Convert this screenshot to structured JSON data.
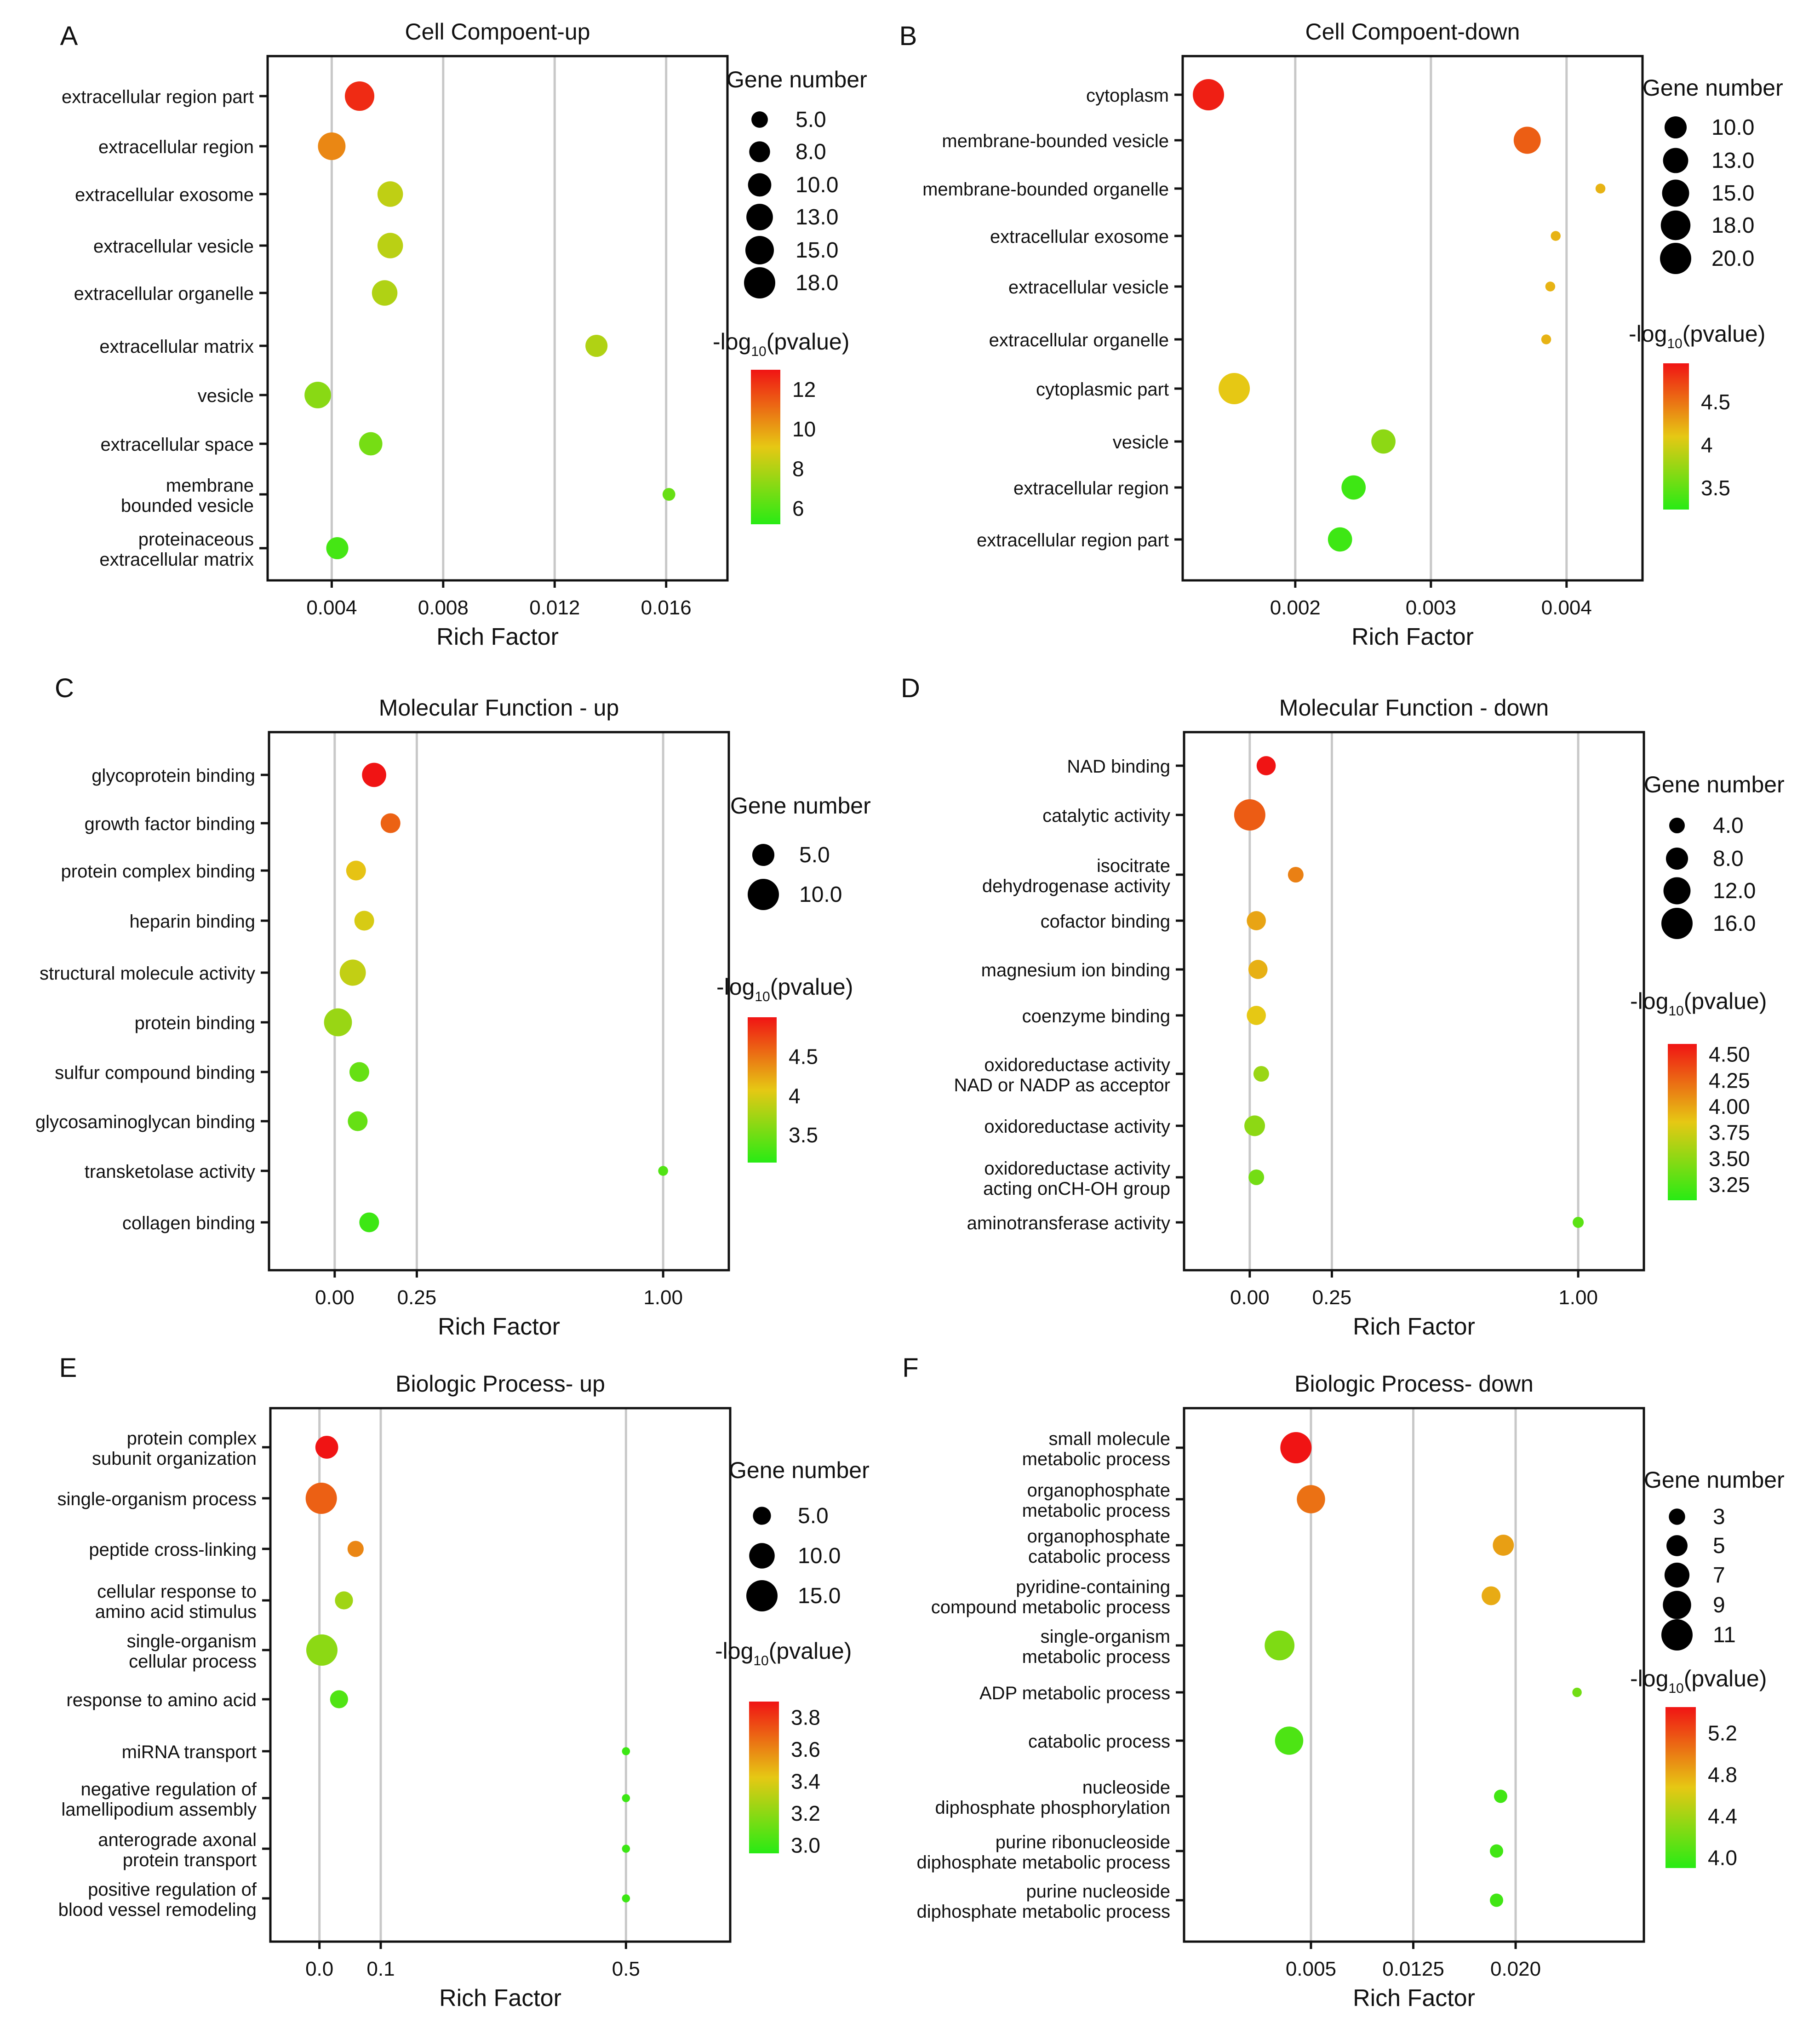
{
  "chart_data": [
    {
      "panel": "A",
      "type": "scatter",
      "title": "Cell Compoent-up",
      "xlabel": "Rich Factor",
      "xlim": [
        0.0017,
        0.0182
      ],
      "xticks": [
        0.004,
        0.008,
        0.012,
        0.016
      ],
      "xtick_labels": [
        "0.004",
        "0.008",
        "0.012",
        "0.016"
      ],
      "categories": [
        "extracellular region part",
        "extracellular region",
        "extracellular exosome",
        "extracellular vesicle",
        "extracellular organelle",
        "extracellular matrix",
        "vesicle",
        "extracellular space",
        "membrane|bounded vesicle",
        "proteinaceous|extracellular matrix"
      ],
      "rich_factor": [
        0.005,
        0.004,
        0.0061,
        0.0061,
        0.0059,
        0.0135,
        0.0035,
        0.0054,
        0.0161,
        0.0042
      ],
      "gene_number": [
        16,
        14,
        12,
        12,
        12,
        9,
        13,
        10,
        3,
        9
      ],
      "neg_log10_p": [
        12.5,
        10.5,
        8.3,
        8.2,
        8.0,
        8.0,
        7.2,
        6.8,
        6.5,
        5.8
      ],
      "size_legend": {
        "title": "Gene number",
        "values": [
          5.0,
          8.0,
          10.0,
          13.0,
          15.0,
          18.0
        ],
        "labels": [
          "5.0",
          "8.0",
          "10.0",
          "13.0",
          "15.0",
          "18.0"
        ]
      },
      "color_legend": {
        "title": "-log",
        "subscript": "10",
        "suffix": "(pvalue)",
        "min": 5.2,
        "max": 13.0,
        "ticks": [
          12,
          10,
          8,
          6
        ],
        "tick_labels": [
          "12",
          "10",
          "8",
          "6"
        ]
      }
    },
    {
      "panel": "B",
      "type": "scatter",
      "title": "Cell Compoent-down",
      "xlabel": "Rich Factor",
      "xlim": [
        0.00117,
        0.00456
      ],
      "xticks": [
        0.002,
        0.003,
        0.004
      ],
      "xtick_labels": [
        "0.002",
        "0.003",
        "0.004"
      ],
      "categories": [
        "cytoplasm",
        "membrane-bounded vesicle",
        "membrane-bounded organelle",
        "extracellular exosome",
        "extracellular vesicle",
        "extracellular organelle",
        "cytoplasmic part",
        "vesicle",
        "extracellular region",
        "extracellular region part"
      ],
      "rich_factor": [
        0.00136,
        0.00371,
        0.00425,
        0.00392,
        0.00388,
        0.00385,
        0.00155,
        0.00265,
        0.00243,
        0.00233
      ],
      "gene_number": [
        20,
        15,
        2,
        2,
        2,
        2,
        20,
        12,
        12,
        12
      ],
      "neg_log10_p": [
        4.9,
        4.6,
        4.2,
        4.2,
        4.2,
        4.2,
        4.1,
        3.7,
        3.35,
        3.35
      ],
      "size_legend": {
        "title": "Gene number",
        "values": [
          10.0,
          13.0,
          15.0,
          18.0,
          20.0
        ],
        "labels": [
          "10.0",
          "13.0",
          "15.0",
          "18.0",
          "20.0"
        ]
      },
      "color_legend": {
        "title": "-log",
        "subscript": "10",
        "suffix": "(pvalue)",
        "min": 3.25,
        "max": 4.95,
        "ticks": [
          4.5,
          4,
          3.5
        ],
        "tick_labels": [
          "4.5",
          "4",
          "3.5"
        ]
      }
    },
    {
      "panel": "C",
      "type": "scatter",
      "title": "Molecular Function - up",
      "xlabel": "Rich Factor",
      "xlim": [
        -0.2,
        1.2
      ],
      "axis_break": {
        "between": [
          0.25,
          1.0
        ]
      },
      "xticks": [
        0.0,
        0.25,
        1.0
      ],
      "xtick_labels": [
        "0.00",
        "0.25",
        "1.00"
      ],
      "categories": [
        "glycoprotein binding",
        "growth factor binding",
        "protein complex binding",
        "heparin binding",
        "structural molecule activity",
        "protein binding",
        "sulfur compound binding",
        "glycosaminoglycan binding",
        "transketolase activity",
        "collagen binding"
      ],
      "rich_factor": [
        0.12,
        0.17,
        0.065,
        0.09,
        0.055,
        0.01,
        0.075,
        0.07,
        1.0,
        0.105
      ],
      "gene_number": [
        6,
        4,
        4,
        4,
        7,
        8,
        4,
        4,
        1,
        4
      ],
      "neg_log10_p": [
        5.1,
        4.6,
        4.1,
        4.0,
        3.9,
        3.7,
        3.45,
        3.45,
        3.35,
        3.25
      ],
      "size_legend": {
        "title": "Gene number",
        "values": [
          5.0,
          10.0
        ],
        "labels": [
          "5.0",
          "10.0"
        ]
      },
      "color_legend": {
        "title": "-log",
        "subscript": "10",
        "suffix": "(pvalue)",
        "min": 3.15,
        "max": 5.0,
        "ticks": [
          4.5,
          4,
          3.5
        ],
        "tick_labels": [
          "4.5",
          "4",
          "3.5"
        ]
      }
    },
    {
      "panel": "D",
      "type": "scatter",
      "title": "Molecular Function - down",
      "xlabel": "Rich Factor",
      "xlim": [
        -0.2,
        1.2
      ],
      "axis_break": {
        "between": [
          0.25,
          1.0
        ]
      },
      "xticks": [
        0.0,
        0.25,
        1.0
      ],
      "xtick_labels": [
        "0.00",
        "0.25",
        "1.00"
      ],
      "categories": [
        "NAD binding",
        "catalytic activity",
        "isocitrate|dehydrogenase activity",
        "cofactor binding",
        "magnesium ion binding",
        "coenzyme binding",
        "oxidoreductase activity|NAD or NADP as acceptor",
        "oxidoreductase activity",
        "oxidoreductase activity|acting onCH-OH group",
        "aminotransferase activity"
      ],
      "rich_factor": [
        0.05,
        0.0,
        0.14,
        0.02,
        0.025,
        0.02,
        0.035,
        0.015,
        0.02,
        1.0
      ],
      "gene_number": [
        6,
        16,
        4,
        6,
        6,
        6,
        4,
        7,
        4,
        2
      ],
      "neg_log10_p": [
        4.6,
        4.3,
        4.15,
        4.0,
        3.95,
        3.85,
        3.55,
        3.5,
        3.4,
        3.3
      ],
      "size_legend": {
        "title": "Gene number",
        "values": [
          4.0,
          8.0,
          12.0,
          16.0
        ],
        "labels": [
          "4.0",
          "8.0",
          "12.0",
          "16.0"
        ]
      },
      "color_legend": {
        "title": "-log",
        "subscript": "10",
        "suffix": "(pvalue)",
        "min": 3.1,
        "max": 4.6,
        "ticks": [
          4.5,
          4.25,
          4.0,
          3.75,
          3.5,
          3.25
        ],
        "tick_labels": [
          "4.50",
          "4.25",
          "4.00",
          "3.75",
          "3.50",
          "3.25"
        ]
      }
    },
    {
      "panel": "E",
      "type": "scatter",
      "title": "Biologic Process- up",
      "xlabel": "Rich Factor",
      "xlim": [
        -0.08,
        0.67
      ],
      "axis_break": {
        "between": [
          0.1,
          0.5
        ]
      },
      "xticks": [
        0.0,
        0.1,
        0.5
      ],
      "xtick_labels": [
        "0.0",
        "0.1",
        "0.5"
      ],
      "categories": [
        "protein complex|subunit organization",
        "single-organism process",
        "peptide cross-linking",
        "cellular response to|amino acid stimulus",
        "single-organism|cellular process",
        "response to amino acid",
        "miRNA transport",
        "negative regulation of|lamellipodium assembly",
        "anterograde axonal|protein transport",
        "positive regulation of|blood vessel remodeling"
      ],
      "rich_factor": [
        0.012,
        0.003,
        0.059,
        0.04,
        0.004,
        0.032,
        0.5,
        0.5,
        0.5,
        0.5
      ],
      "gene_number": [
        8,
        15,
        4,
        5,
        15,
        5,
        1,
        1,
        1,
        1
      ],
      "neg_log10_p": [
        3.9,
        3.7,
        3.6,
        3.25,
        3.2,
        3.05,
        3.0,
        3.0,
        3.0,
        3.0
      ],
      "size_legend": {
        "title": "Gene number",
        "values": [
          5.0,
          10.0,
          15.0
        ],
        "labels": [
          "5.0",
          "10.0",
          "15.0"
        ]
      },
      "color_legend": {
        "title": "-log",
        "subscript": "10",
        "suffix": "(pvalue)",
        "min": 2.95,
        "max": 3.9,
        "ticks": [
          3.8,
          3.6,
          3.4,
          3.2,
          3.0
        ],
        "tick_labels": [
          "3.8",
          "3.6",
          "3.4",
          "3.2",
          "3.0"
        ]
      }
    },
    {
      "panel": "F",
      "type": "scatter",
      "title": "Biologic Process- down",
      "xlabel": "Rich Factor",
      "xlim": [
        -0.0043,
        0.0294
      ],
      "axis_break": {
        "between": [
          0.005,
          0.0125
        ]
      },
      "xticks": [
        0.005,
        0.0125,
        0.02
      ],
      "xtick_labels": [
        "0.005",
        "0.0125",
        "0.020"
      ],
      "categories": [
        "small molecule|metabolic process",
        "organophosphate|metabolic process",
        "organophosphate|catabolic process",
        "pyridine-containing|compound metabolic process",
        "single-organism|metabolic process",
        "ADP metabolic process",
        "catabolic process",
        "nucleoside|diphosphate phosphorylation",
        "purine ribonucleoside|diphosphate metabolic process",
        "purine nucleoside|diphosphate metabolic process"
      ],
      "rich_factor": [
        0.0039,
        0.005,
        0.0191,
        0.0182,
        0.0027,
        0.0245,
        0.0034,
        0.0189,
        0.0186,
        0.0186
      ],
      "gene_number": [
        11,
        9,
        5,
        4,
        10,
        1,
        9,
        2,
        2,
        2
      ],
      "neg_log10_p": [
        5.45,
        5.05,
        4.85,
        4.8,
        4.25,
        4.2,
        4.05,
        4.0,
        4.0,
        4.0
      ],
      "size_legend": {
        "title": "Gene number",
        "values": [
          3,
          5,
          7,
          9,
          11
        ],
        "labels": [
          "3",
          "5",
          "7",
          "9",
          "11"
        ]
      },
      "color_legend": {
        "title": "-log",
        "subscript": "10",
        "suffix": "(pvalue)",
        "min": 3.9,
        "max": 5.45,
        "ticks": [
          5.2,
          4.8,
          4.4,
          4.0
        ],
        "tick_labels": [
          "5.2",
          "4.8",
          "4.4",
          "4.0"
        ]
      }
    }
  ]
}
